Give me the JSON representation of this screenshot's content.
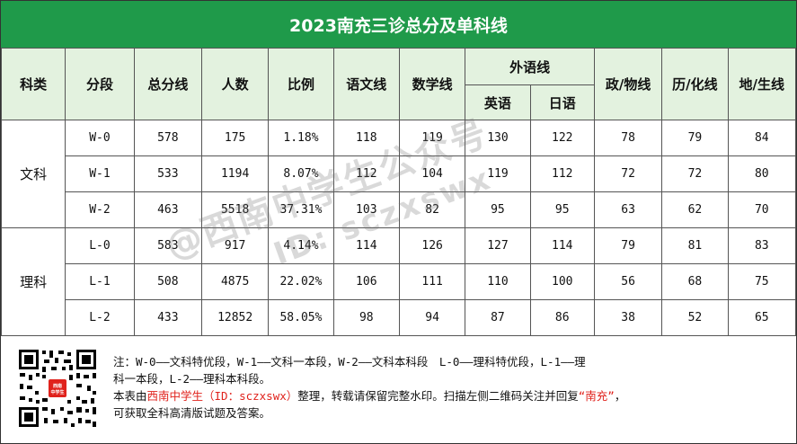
{
  "title": "2023南充三诊总分及单科线",
  "headers": {
    "category": "科类",
    "segment": "分段",
    "total_line": "总分线",
    "count": "人数",
    "ratio": "比例",
    "chinese": "语文线",
    "math": "数学线",
    "foreign": "外语线",
    "english": "英语",
    "japanese": "日语",
    "politics_physics": "政/物线",
    "history_chemistry": "历/化线",
    "geo_bio": "地/生线"
  },
  "groups": [
    {
      "category": "文科",
      "rows": [
        [
          "W-0",
          "578",
          "175",
          "1.18%",
          "118",
          "119",
          "130",
          "122",
          "78",
          "79",
          "84"
        ],
        [
          "W-1",
          "533",
          "1194",
          "8.07%",
          "112",
          "104",
          "119",
          "112",
          "72",
          "72",
          "80"
        ],
        [
          "W-2",
          "463",
          "5518",
          "37.31%",
          "103",
          "82",
          "95",
          "95",
          "63",
          "62",
          "70"
        ]
      ]
    },
    {
      "category": "理科",
      "rows": [
        [
          "L-0",
          "583",
          "917",
          "4.14%",
          "114",
          "126",
          "127",
          "114",
          "79",
          "81",
          "83"
        ],
        [
          "L-1",
          "508",
          "4875",
          "22.02%",
          "106",
          "111",
          "110",
          "100",
          "56",
          "68",
          "75"
        ],
        [
          "L-2",
          "433",
          "12852",
          "58.05%",
          "98",
          "94",
          "87",
          "86",
          "38",
          "52",
          "65"
        ]
      ]
    }
  ],
  "watermark": {
    "line1": "@西南中学生公众号",
    "line2": "ID: sczxswx"
  },
  "qr_badge": "西南中学生",
  "notes": {
    "line1": "注：W-0——文科特优段，W-1——文科一本段，W-2——文科本科段　L-0——理科特优段，L-1——理",
    "line2": "科一本段，L-2——理科本科段。",
    "line3_prefix": "本表由",
    "line3_brand": "西南中学生（ID：sczxswx）",
    "line3_middle": "整理，转载请保留完整水印。扫描左侧二维码关注并回复",
    "line3_keyword": "“南充”",
    "line3_suffix": "，",
    "line4": "可获取全科高清版试题及答案。"
  },
  "colors": {
    "title_bg": "#1f9a4a",
    "header_bg": "#e3f2df",
    "accent_red": "#e0221c"
  }
}
